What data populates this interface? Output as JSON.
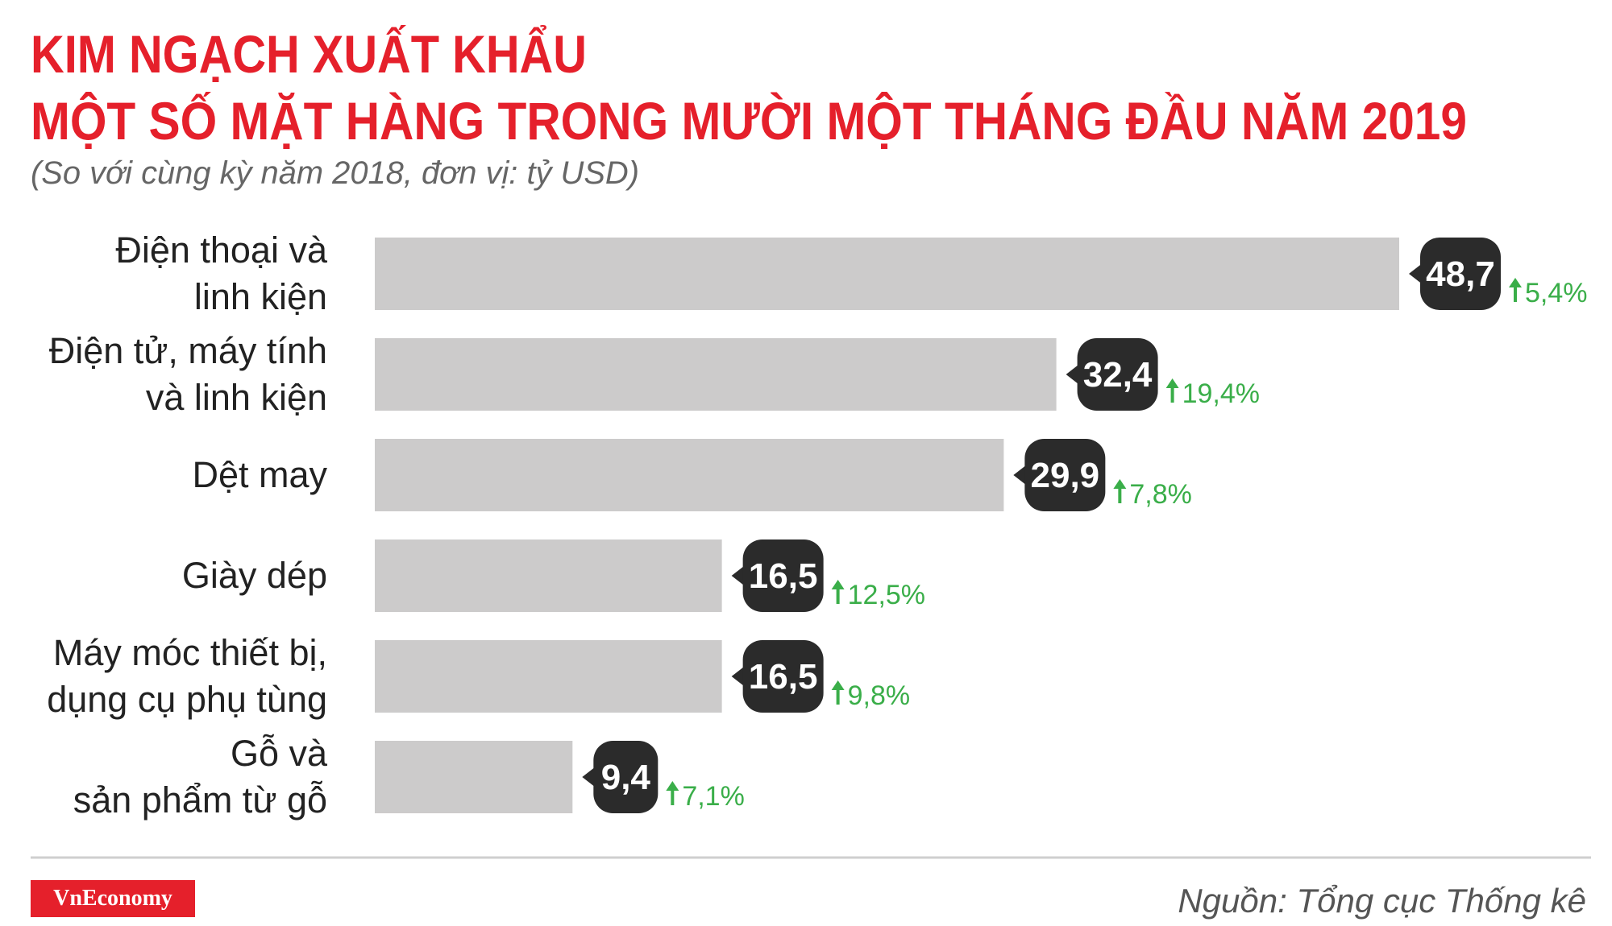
{
  "chart_data": {
    "type": "bar",
    "orientation": "horizontal",
    "title": [
      "KIM NGẠCH XUẤT KHẨU",
      "MỘT SỐ MẶT HÀNG TRONG MƯỜI MỘT THÁNG ĐẦU NĂM 2019"
    ],
    "subtitle": "(So với cùng kỳ năm 2018, đơn vị: tỷ USD)",
    "categories": [
      "Điện thoại và\nlinh kiện",
      "Điện tử, máy tính\nvà linh kiện",
      "Dệt may",
      "Giày dép",
      "Máy móc thiết bị,\ndụng cụ phụ tùng",
      "Gỗ và\nsản phẩm từ gỗ"
    ],
    "values": [
      48.7,
      32.4,
      29.9,
      16.5,
      16.5,
      9.4
    ],
    "value_labels": [
      "48,7",
      "32,4",
      "29,9",
      "16,5",
      "16,5",
      "9,4"
    ],
    "color": "#cccbcb",
    "label_color": "#2b2b2b",
    "growth": {
      "values": [
        5.4,
        19.4,
        7.8,
        12.5,
        9.8,
        7.1
      ],
      "value_labels": [
        "5,4%",
        "19,4%",
        "7,8%",
        "12,5%",
        "9,8%",
        "7,1%"
      ],
      "color": "#3aae49"
    },
    "logo": "VnEconomy",
    "source": "Nguồn: Tổng cục Thống kê"
  }
}
